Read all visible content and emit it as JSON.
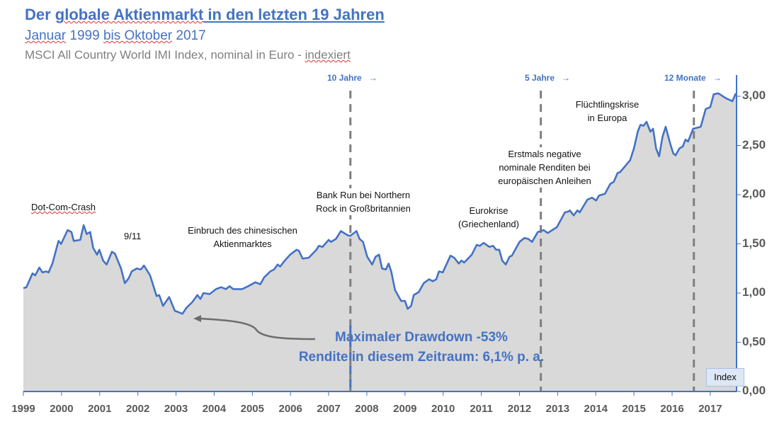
{
  "header": {
    "title_part1": "Der ",
    "title_part2": "globale Aktienmarkt",
    "title_part3": " in den letzten 19 Jahren",
    "subtitle_part1": "Januar",
    "subtitle_part2": " 1999 ",
    "subtitle_part3": "bis Oktober",
    "subtitle_part4": " 2017",
    "source_part1": "MSCI All Country World IMI Index, nominal in Euro - ",
    "source_part2": "indexiert"
  },
  "colors": {
    "line": "#4472C4",
    "area": "#d9d9d9",
    "dash": "#7f7f7f",
    "arrow": "#6d6d6d"
  },
  "chart_data": {
    "type": "area",
    "title": "Der globale Aktienmarkt in den letzten 19 Jahren",
    "xlabel": "",
    "ylabel": "Index",
    "xlim": [
      1999,
      2017.67
    ],
    "ylim": [
      0,
      3
    ],
    "x_ticks": [
      "1999",
      "2000",
      "2001",
      "2002",
      "2003",
      "2004",
      "2005",
      "2006",
      "2007",
      "2008",
      "2009",
      "2010",
      "2011",
      "2012",
      "2013",
      "2014",
      "2015",
      "2016",
      "2017"
    ],
    "y_ticks": [
      {
        "v": 0,
        "label": "0,00"
      },
      {
        "v": 0.5,
        "label": "0,50"
      },
      {
        "v": 1,
        "label": "1,00"
      },
      {
        "v": 1.5,
        "label": "1,50"
      },
      {
        "v": 2,
        "label": "2,00"
      },
      {
        "v": 2.5,
        "label": "2,50"
      },
      {
        "v": 3,
        "label": "3,00"
      }
    ],
    "y_axis_label": "Index",
    "grid": false,
    "series": [
      {
        "name": "MSCI ACWI IMI (EUR, indexiert)",
        "x": [
          1999.0,
          1999.08,
          1999.24,
          1999.31,
          1999.42,
          1999.5,
          1999.6,
          1999.66,
          1999.76,
          1999.92,
          1999.99,
          2000.16,
          2000.26,
          2000.32,
          2000.49,
          2000.58,
          2000.66,
          2000.75,
          2000.83,
          2000.93,
          2000.99,
          2001.09,
          2001.18,
          2001.32,
          2001.4,
          2001.56,
          2001.66,
          2001.76,
          2001.84,
          2001.97,
          2002.08,
          2002.16,
          2002.32,
          2002.49,
          2002.56,
          2002.66,
          2002.82,
          2002.97,
          2003.17,
          2003.27,
          2003.43,
          2003.56,
          2003.64,
          2003.72,
          2003.88,
          2004.05,
          2004.18,
          2004.31,
          2004.4,
          2004.5,
          2004.73,
          2004.89,
          2005.08,
          2005.21,
          2005.31,
          2005.47,
          2005.57,
          2005.66,
          2005.73,
          2005.85,
          2005.99,
          2006.16,
          2006.22,
          2006.32,
          2006.48,
          2006.68,
          2006.74,
          2006.84,
          2007.0,
          2007.06,
          2007.19,
          2007.32,
          2007.49,
          2007.56,
          2007.73,
          2007.81,
          2007.9,
          2008.01,
          2008.14,
          2008.23,
          2008.32,
          2008.4,
          2008.5,
          2008.57,
          2008.64,
          2008.74,
          2008.9,
          2009.0,
          2009.07,
          2009.16,
          2009.23,
          2009.36,
          2009.49,
          2009.63,
          2009.73,
          2009.82,
          2009.89,
          2009.99,
          2010.19,
          2010.29,
          2010.41,
          2010.48,
          2010.55,
          2010.75,
          2010.88,
          2010.96,
          2011.06,
          2011.21,
          2011.31,
          2011.39,
          2011.47,
          2011.55,
          2011.64,
          2011.74,
          2011.8,
          2012.0,
          2012.13,
          2012.23,
          2012.33,
          2012.48,
          2012.63,
          2012.74,
          2012.86,
          2012.98,
          2013.19,
          2013.29,
          2013.32,
          2013.42,
          2013.52,
          2013.58,
          2013.78,
          2013.9,
          2014.01,
          2014.08,
          2014.24,
          2014.38,
          2014.47,
          2014.57,
          2014.64,
          2014.9,
          2015.0,
          2015.1,
          2015.17,
          2015.25,
          2015.33,
          2015.43,
          2015.5,
          2015.58,
          2015.66,
          2015.75,
          2015.83,
          2015.95,
          2016.03,
          2016.09,
          2016.19,
          2016.28,
          2016.35,
          2016.42,
          2016.55,
          2016.65,
          2016.75,
          2016.88,
          2017.0,
          2017.09,
          2017.21,
          2017.41,
          2017.58,
          2017.67
        ],
        "y": [
          1.05,
          1.06,
          1.2,
          1.18,
          1.26,
          1.21,
          1.22,
          1.21,
          1.3,
          1.53,
          1.5,
          1.64,
          1.62,
          1.53,
          1.54,
          1.69,
          1.6,
          1.62,
          1.46,
          1.39,
          1.44,
          1.33,
          1.29,
          1.42,
          1.4,
          1.25,
          1.1,
          1.15,
          1.22,
          1.25,
          1.24,
          1.28,
          1.18,
          0.97,
          0.98,
          0.87,
          0.96,
          0.82,
          0.79,
          0.85,
          0.91,
          0.98,
          0.94,
          1.0,
          0.99,
          1.04,
          1.06,
          1.04,
          1.07,
          1.04,
          1.04,
          1.07,
          1.11,
          1.09,
          1.16,
          1.22,
          1.24,
          1.29,
          1.27,
          1.33,
          1.39,
          1.44,
          1.43,
          1.35,
          1.36,
          1.44,
          1.48,
          1.47,
          1.54,
          1.52,
          1.55,
          1.63,
          1.59,
          1.58,
          1.63,
          1.55,
          1.52,
          1.37,
          1.29,
          1.37,
          1.39,
          1.25,
          1.24,
          1.3,
          1.22,
          1.03,
          0.92,
          0.92,
          0.84,
          0.87,
          0.98,
          1.01,
          1.1,
          1.14,
          1.12,
          1.14,
          1.22,
          1.21,
          1.38,
          1.36,
          1.3,
          1.33,
          1.31,
          1.39,
          1.49,
          1.48,
          1.51,
          1.47,
          1.48,
          1.44,
          1.44,
          1.33,
          1.29,
          1.37,
          1.38,
          1.52,
          1.56,
          1.55,
          1.52,
          1.62,
          1.64,
          1.61,
          1.64,
          1.67,
          1.82,
          1.83,
          1.84,
          1.79,
          1.84,
          1.82,
          1.95,
          1.97,
          1.94,
          1.99,
          2.01,
          2.11,
          2.13,
          2.22,
          2.23,
          2.35,
          2.47,
          2.64,
          2.71,
          2.7,
          2.74,
          2.64,
          2.67,
          2.47,
          2.39,
          2.59,
          2.69,
          2.52,
          2.42,
          2.4,
          2.47,
          2.49,
          2.56,
          2.54,
          2.67,
          2.68,
          2.69,
          2.87,
          2.89,
          3.02,
          3.03,
          2.98,
          2.95,
          3.03
        ]
      }
    ],
    "period_markers": [
      {
        "x": 2007.57,
        "label": "10 Jahre",
        "arrow": "→"
      },
      {
        "x": 2012.56,
        "label": "5 Jahre",
        "arrow": "→"
      },
      {
        "x": 2016.57,
        "label": "12 Monate",
        "arrow": "→"
      }
    ],
    "annotations": {
      "dotcom": "Dot-Com-Crash",
      "nine_eleven": "9/11",
      "china_1": "Einbruch des chinesischen",
      "china_2": "Aktienmarktes",
      "bankrun_1": "Bank Run bei Northern",
      "bankrun_2": "Rock in Großbritannien",
      "euro_1": "Eurokrise",
      "euro_2": "(Griechenland)",
      "negative_1": "Erstmals negative",
      "negative_2": "nominale Renditen bei",
      "negative_3": "europäischen Anleihen",
      "refugee_1": "Flüchtlingskrise",
      "refugee_2": "in Europa",
      "drawdown": "Maximaler Drawdown -53%",
      "return": "Rendite in diesem Zeitraum: 6,1% p. a."
    }
  }
}
